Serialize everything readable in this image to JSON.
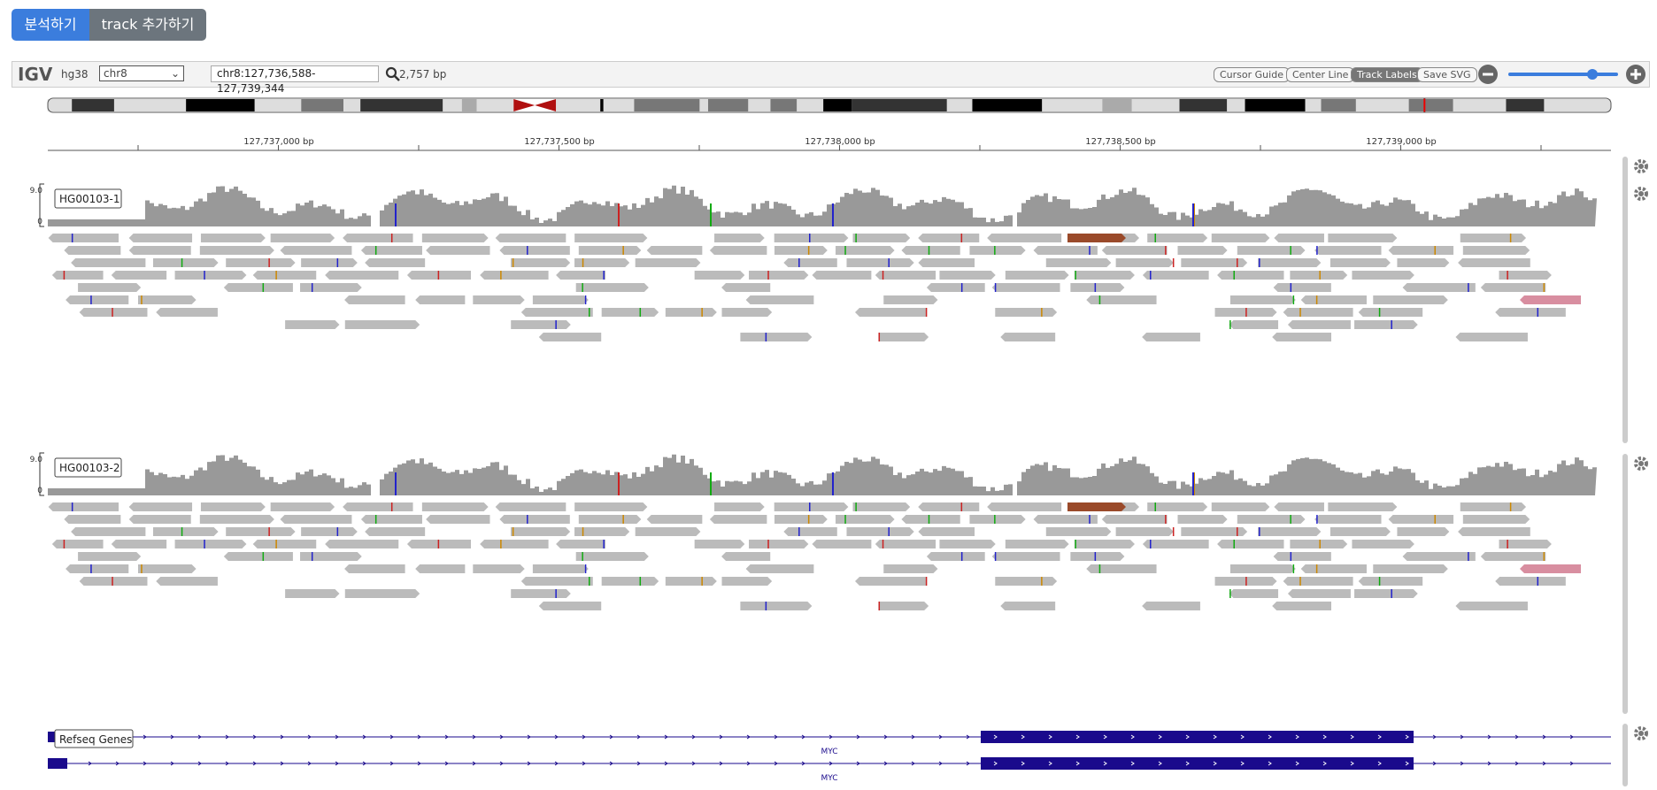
{
  "toolbar": {
    "buttons": [
      "분석하기",
      "track 추가하기"
    ]
  },
  "navbar": {
    "logo": "IGV",
    "genome": "hg38",
    "chromosome": "chr8",
    "locus": "chr8:127,736,588-127,739,344",
    "width": "2,757 bp",
    "buttons": [
      "Cursor Guide",
      "Center Line",
      "Track Labels",
      "Save SVG"
    ]
  },
  "ruler": {
    "ticks": [
      "127,737,000 bp",
      "127,737,500 bp",
      "127,738,000 bp",
      "127,738,500 bp",
      "127,739,000 bp"
    ]
  },
  "tracks": [
    {
      "label": "HG00103-1",
      "scale_max": "9.0",
      "scale_min": "0"
    },
    {
      "label": "HG00103-2",
      "scale_max": "9.0",
      "scale_min": "0"
    }
  ],
  "genes": {
    "label": "Refseq Genes",
    "transcripts": [
      "MYC",
      "MYC"
    ]
  }
}
